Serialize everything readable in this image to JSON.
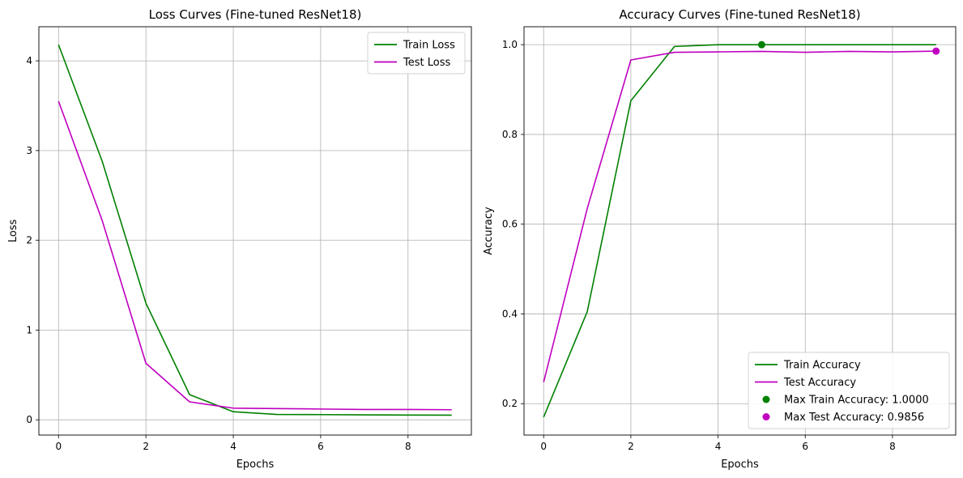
{
  "chart_data": [
    {
      "type": "line",
      "title": "Loss Curves (Fine-tuned ResNet18)",
      "xlabel": "Epochs",
      "ylabel": "Loss",
      "xlim": [
        -0.45,
        9.45
      ],
      "ylim": [
        -0.17,
        4.38
      ],
      "xticks": [
        0,
        2,
        4,
        6,
        8
      ],
      "yticks": [
        0,
        1,
        2,
        3,
        4
      ],
      "grid": true,
      "legend_position": "top-right",
      "x": [
        0,
        1,
        2,
        3,
        4,
        5,
        6,
        7,
        8,
        9
      ],
      "series": [
        {
          "name": "Train Loss",
          "color": "#008000",
          "values": [
            4.18,
            2.88,
            1.3,
            0.28,
            0.09,
            0.06,
            0.058,
            0.055,
            0.053,
            0.052
          ]
        },
        {
          "name": "Test Loss",
          "color": "#bf00bf",
          "values": [
            3.55,
            2.22,
            0.63,
            0.2,
            0.13,
            0.125,
            0.12,
            0.115,
            0.115,
            0.112
          ]
        }
      ]
    },
    {
      "type": "line",
      "title": "Accuracy Curves (Fine-tuned ResNet18)",
      "xlabel": "Epochs",
      "ylabel": "Accuracy",
      "xlim": [
        -0.45,
        9.45
      ],
      "ylim": [
        0.13,
        1.04
      ],
      "xticks": [
        0,
        2,
        4,
        6,
        8
      ],
      "yticks": [
        0.2,
        0.4,
        0.6,
        0.8,
        1.0
      ],
      "ytick_labels": [
        "0.2",
        "0.4",
        "0.6",
        "0.8",
        "1.0"
      ],
      "grid": true,
      "legend_position": "bottom-right",
      "x": [
        0,
        1,
        2,
        3,
        4,
        5,
        6,
        7,
        8,
        9
      ],
      "series": [
        {
          "name": "Train Accuracy",
          "color": "#008000",
          "values": [
            0.17,
            0.405,
            0.875,
            0.996,
            1.0,
            1.0,
            1.0,
            1.0,
            1.0,
            1.0
          ]
        },
        {
          "name": "Test Accuracy",
          "color": "#bf00bf",
          "values": [
            0.248,
            0.635,
            0.966,
            0.983,
            0.984,
            0.985,
            0.983,
            0.985,
            0.984,
            0.9856
          ]
        }
      ],
      "markers": [
        {
          "name": "Max Train Accuracy: 1.0000",
          "color": "#008000",
          "x": 5,
          "y": 1.0
        },
        {
          "name": "Max Test Accuracy: 0.9856",
          "color": "#bf00bf",
          "x": 9,
          "y": 0.9856
        }
      ]
    }
  ]
}
